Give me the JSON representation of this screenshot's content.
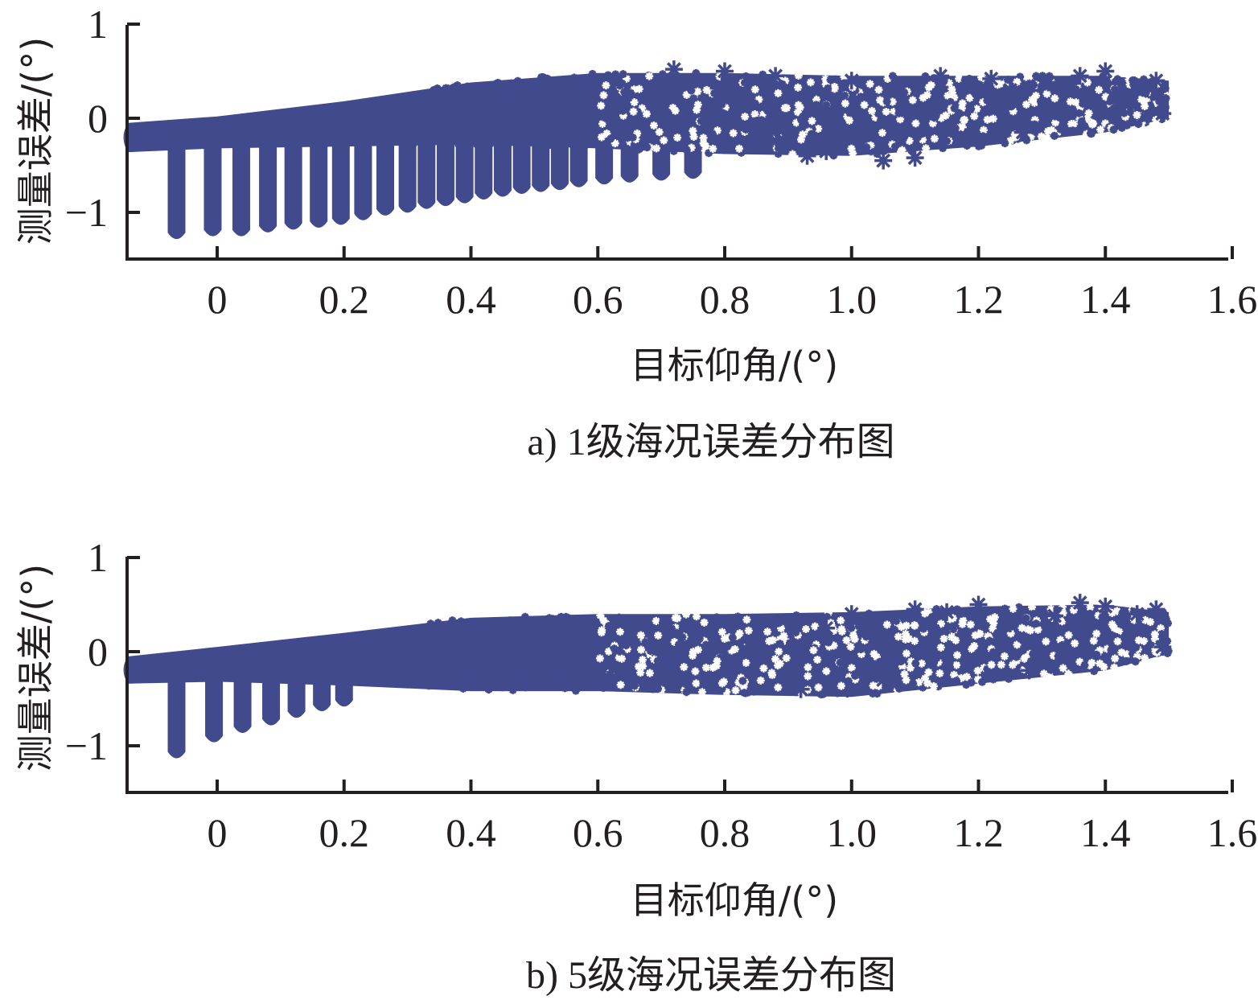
{
  "chart_data": [
    {
      "id": "a",
      "type": "scatter",
      "caption": "a) 1级海况误差分布图",
      "xlabel": "目标仰角/(°)",
      "ylabel": "测量误差/(°)",
      "xlim": [
        -0.14,
        1.6
      ],
      "ylim": [
        -1.5,
        1.0
      ],
      "xticks": [
        0,
        0.2,
        0.4,
        0.6,
        0.8,
        1.0,
        1.2,
        1.4,
        1.6
      ],
      "xtick_labels": [
        "0",
        "0.2",
        "0.4",
        "0.6",
        "0.8",
        "1.0",
        "1.2",
        "1.4",
        "1.6"
      ],
      "yticks": [
        1,
        0,
        -1
      ],
      "ytick_labels": [
        "1",
        "0",
        "−1"
      ],
      "marker": "*",
      "color": "#414a8c",
      "band": {
        "x": [
          -0.14,
          0.0,
          0.2,
          0.4,
          0.6,
          0.8,
          1.0,
          1.2,
          1.4,
          1.5
        ],
        "upper": [
          -0.05,
          0.02,
          0.18,
          0.38,
          0.48,
          0.48,
          0.45,
          0.45,
          0.45,
          0.4
        ],
        "lower": [
          -0.36,
          -0.32,
          -0.3,
          -0.28,
          -0.32,
          -0.38,
          -0.4,
          -0.3,
          -0.15,
          0.0
        ],
        "center": [
          -0.23,
          -0.15,
          0.0,
          0.1,
          0.12,
          0.1,
          0.05,
          0.1,
          0.18,
          0.2
        ]
      },
      "spikes": [
        {
          "x": -0.064,
          "min": -1.3
        },
        {
          "x": -0.007,
          "min": -1.27
        },
        {
          "x": 0.038,
          "min": -1.27
        },
        {
          "x": 0.08,
          "min": -1.23
        },
        {
          "x": 0.12,
          "min": -1.2
        },
        {
          "x": 0.16,
          "min": -1.18
        },
        {
          "x": 0.195,
          "min": -1.15
        },
        {
          "x": 0.23,
          "min": -1.1
        },
        {
          "x": 0.265,
          "min": -1.05
        },
        {
          "x": 0.3,
          "min": -1.02
        },
        {
          "x": 0.33,
          "min": -0.98
        },
        {
          "x": 0.36,
          "min": -0.95
        },
        {
          "x": 0.39,
          "min": -0.92
        },
        {
          "x": 0.42,
          "min": -0.88
        },
        {
          "x": 0.45,
          "min": -0.85
        },
        {
          "x": 0.48,
          "min": -0.82
        },
        {
          "x": 0.51,
          "min": -0.8
        },
        {
          "x": 0.54,
          "min": -0.78
        },
        {
          "x": 0.57,
          "min": -0.75
        },
        {
          "x": 0.61,
          "min": -0.72
        },
        {
          "x": 0.65,
          "min": -0.7
        },
        {
          "x": 0.7,
          "min": -0.68
        },
        {
          "x": 0.75,
          "min": -0.66
        }
      ],
      "outliers": [
        [
          0.64,
          0.2
        ],
        [
          0.72,
          0.52
        ],
        [
          0.8,
          0.5
        ],
        [
          0.88,
          0.45
        ],
        [
          0.93,
          -0.4
        ],
        [
          0.96,
          -0.35
        ],
        [
          1.0,
          0.4
        ],
        [
          1.05,
          -0.45
        ],
        [
          1.1,
          -0.42
        ],
        [
          1.14,
          0.45
        ],
        [
          1.18,
          -0.2
        ],
        [
          1.22,
          0.42
        ],
        [
          1.27,
          -0.15
        ],
        [
          1.31,
          0.38
        ],
        [
          1.36,
          0.45
        ],
        [
          1.4,
          0.5
        ],
        [
          1.45,
          0.3
        ],
        [
          1.48,
          0.4
        ],
        [
          1.49,
          0.05
        ],
        [
          1.25,
          0.3
        ]
      ]
    },
    {
      "id": "b",
      "type": "scatter",
      "caption": "b) 5级海况误差分布图",
      "xlabel": "目标仰角/(°)",
      "ylabel": "测量误差/(°)",
      "xlim": [
        -0.14,
        1.6
      ],
      "ylim": [
        -1.5,
        1.0
      ],
      "xticks": [
        0,
        0.2,
        0.4,
        0.6,
        0.8,
        1.0,
        1.2,
        1.4,
        1.6
      ],
      "xtick_labels": [
        "0",
        "0.2",
        "0.4",
        "0.6",
        "0.8",
        "1.0",
        "1.2",
        "1.4",
        "1.6"
      ],
      "yticks": [
        1,
        0,
        -1
      ],
      "ytick_labels": [
        "1",
        "0",
        "−1"
      ],
      "marker": "*",
      "color": "#414a8c",
      "band": {
        "x": [
          -0.14,
          0.0,
          0.2,
          0.4,
          0.6,
          0.8,
          1.0,
          1.2,
          1.4,
          1.5
        ],
        "upper": [
          -0.05,
          0.05,
          0.2,
          0.36,
          0.4,
          0.4,
          0.42,
          0.48,
          0.5,
          0.42
        ],
        "lower": [
          -0.34,
          -0.32,
          -0.36,
          -0.42,
          -0.42,
          -0.46,
          -0.48,
          -0.34,
          -0.2,
          -0.02
        ],
        "center": [
          -0.2,
          -0.12,
          0.0,
          0.05,
          0.05,
          0.02,
          0.0,
          0.08,
          0.15,
          0.2
        ]
      },
      "spikes": [
        {
          "x": -0.064,
          "min": -1.15
        },
        {
          "x": -0.005,
          "min": -0.98
        },
        {
          "x": 0.04,
          "min": -0.88
        },
        {
          "x": 0.085,
          "min": -0.8
        },
        {
          "x": 0.125,
          "min": -0.72
        },
        {
          "x": 0.165,
          "min": -0.65
        },
        {
          "x": 0.2,
          "min": -0.6
        }
      ],
      "outliers": [
        [
          0.92,
          -0.4
        ],
        [
          1.0,
          0.4
        ],
        [
          1.05,
          -0.3
        ],
        [
          1.1,
          0.45
        ],
        [
          1.15,
          0.42
        ],
        [
          1.2,
          0.5
        ],
        [
          1.28,
          -0.2
        ],
        [
          1.32,
          0.38
        ],
        [
          1.36,
          0.52
        ],
        [
          1.4,
          0.48
        ],
        [
          1.45,
          0.4
        ],
        [
          1.48,
          0.45
        ],
        [
          1.49,
          0.05
        ],
        [
          1.25,
          0.3
        ],
        [
          0.96,
          0.25
        ]
      ]
    }
  ]
}
